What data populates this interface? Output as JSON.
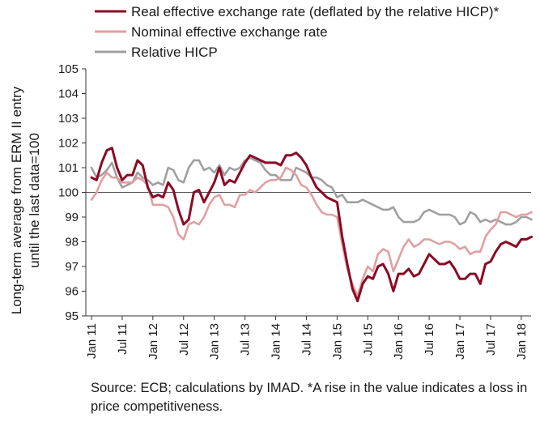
{
  "chart_data": {
    "type": "line",
    "ylabel_lines": [
      "Long-term average from ERM II entry",
      "until the last data=100"
    ],
    "ylim": [
      95,
      105
    ],
    "yticks": [
      95,
      96,
      97,
      98,
      99,
      100,
      101,
      102,
      103,
      104,
      105
    ],
    "xtick_labels": [
      "Jan 11",
      "Jul 11",
      "Jan 12",
      "Jul 12",
      "Jan 13",
      "Jul 13",
      "Jan 14",
      "Jul 14",
      "Jan 15",
      "Jul 15",
      "Jan 16",
      "Jul 16",
      "Jan 17",
      "Jul 17",
      "Jan 18"
    ],
    "x_start": "Jan 11",
    "x_end": "Mar 18",
    "reference_line": 100,
    "legend_position": "top",
    "series": [
      {
        "name": "Real effective exchange rate (deflated by the relative HICP)*",
        "color": "#8b0a25",
        "values": [
          100.6,
          100.5,
          101.2,
          101.7,
          101.8,
          101.0,
          100.5,
          100.7,
          100.7,
          101.3,
          101.1,
          100.2,
          99.8,
          99.9,
          99.8,
          100.4,
          100.1,
          99.3,
          98.7,
          98.9,
          100.0,
          100.1,
          99.6,
          100.0,
          100.4,
          101.0,
          100.3,
          100.5,
          100.4,
          100.8,
          101.2,
          101.5,
          101.4,
          101.3,
          101.2,
          101.2,
          101.2,
          101.1,
          101.5,
          101.5,
          101.6,
          101.4,
          101.1,
          100.6,
          100.2,
          100.0,
          99.8,
          99.7,
          99.6,
          98.2,
          97.1,
          96.1,
          95.6,
          96.3,
          96.6,
          96.5,
          97.0,
          97.1,
          96.7,
          96.0,
          96.7,
          96.7,
          96.9,
          96.6,
          96.7,
          97.1,
          97.5,
          97.3,
          97.1,
          97.1,
          97.2,
          96.9,
          96.5,
          96.5,
          96.7,
          96.7,
          96.3,
          97.1,
          97.2,
          97.6,
          97.9,
          98.0,
          97.9,
          97.8,
          98.1,
          98.1,
          98.2
        ]
      },
      {
        "name": "Nominal effective exchange rate",
        "color": "#e0a0a0",
        "values": [
          99.7,
          100.0,
          100.5,
          100.8,
          100.6,
          100.6,
          100.4,
          100.4,
          100.4,
          100.6,
          100.5,
          100.3,
          99.5,
          99.5,
          99.5,
          99.4,
          99.0,
          98.3,
          98.1,
          98.7,
          98.8,
          98.7,
          99.0,
          99.5,
          99.8,
          99.9,
          99.5,
          99.5,
          99.4,
          99.9,
          99.9,
          100.1,
          100.0,
          100.2,
          100.4,
          100.5,
          100.5,
          100.6,
          101.0,
          100.9,
          100.7,
          100.3,
          100.2,
          99.9,
          99.5,
          99.2,
          99.1,
          99.1,
          99.0,
          97.9,
          96.9,
          96.3,
          95.8,
          96.5,
          97.0,
          96.8,
          97.5,
          97.7,
          97.6,
          96.8,
          97.3,
          97.8,
          98.1,
          97.8,
          97.9,
          98.1,
          98.1,
          98.0,
          97.9,
          98.0,
          98.0,
          97.9,
          97.7,
          97.8,
          97.5,
          97.6,
          97.6,
          98.2,
          98.5,
          98.7,
          99.2,
          99.2,
          99.1,
          99.0,
          99.1,
          99.1,
          99.2
        ]
      },
      {
        "name": "Relative HICP",
        "color": "#a0a0a0",
        "values": [
          101.0,
          100.6,
          100.7,
          100.9,
          101.2,
          100.6,
          100.2,
          100.3,
          100.4,
          100.8,
          100.6,
          100.5,
          100.3,
          100.4,
          100.3,
          101.0,
          100.9,
          100.5,
          100.4,
          101.0,
          101.3,
          101.3,
          100.9,
          101.0,
          100.8,
          101.1,
          100.7,
          101.0,
          100.9,
          101.0,
          101.3,
          101.4,
          101.3,
          101.2,
          100.9,
          100.7,
          100.7,
          100.5,
          100.5,
          100.5,
          101.0,
          100.9,
          100.8,
          100.6,
          100.6,
          100.5,
          100.3,
          100.2,
          99.8,
          99.9,
          99.6,
          99.6,
          99.6,
          99.7,
          99.6,
          99.5,
          99.4,
          99.3,
          99.3,
          99.4,
          99.0,
          98.8,
          98.8,
          98.8,
          98.9,
          99.2,
          99.3,
          99.2,
          99.1,
          99.1,
          99.1,
          99.0,
          98.7,
          98.8,
          99.2,
          99.1,
          98.8,
          98.9,
          98.8,
          98.9,
          98.8,
          98.7,
          98.7,
          98.8,
          99.0,
          99.0,
          98.9
        ]
      }
    ]
  },
  "source_note": "Source: ECB; calculations by IMAD. *A rise in the value indicates a loss in price competitiveness."
}
